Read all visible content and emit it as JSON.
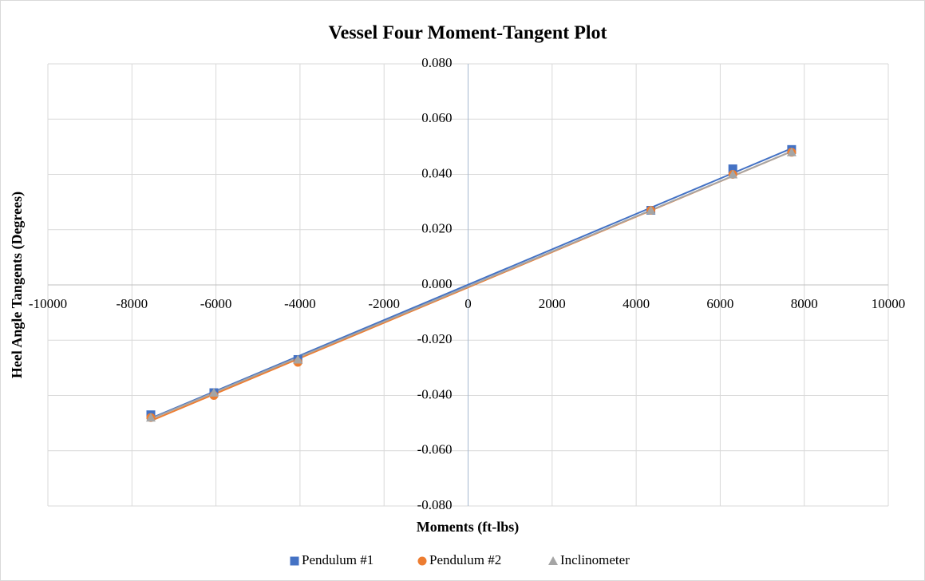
{
  "chart_data": {
    "type": "scatter",
    "title": "Vessel Four Moment-Tangent Plot",
    "x_label": "Moments (ft-lbs)",
    "y_label": "Heel Angle Tangents (Degrees)",
    "x": [
      -7550,
      -6050,
      -4050,
      4350,
      6300,
      7700
    ],
    "series": [
      {
        "name": "Pendulum #1",
        "color": "#4472c4",
        "marker": "square",
        "values": [
          -0.047,
          -0.039,
          -0.027,
          0.027,
          0.042,
          0.049
        ]
      },
      {
        "name": "Pendulum #2",
        "color": "#ed7d31",
        "marker": "circle",
        "values": [
          -0.048,
          -0.04,
          -0.028,
          0.027,
          0.04,
          0.048
        ]
      },
      {
        "name": "Inclinometer",
        "color": "#a5a5a5",
        "marker": "triangle",
        "values": [
          -0.048,
          -0.039,
          -0.027,
          0.027,
          0.04,
          0.048
        ]
      }
    ],
    "trendline": "linear",
    "xlim": [
      -10000,
      10000
    ],
    "xticks": [
      -10000,
      -8000,
      -6000,
      -4000,
      -2000,
      0,
      2000,
      4000,
      6000,
      8000,
      10000
    ],
    "ylim": [
      -0.08,
      0.08
    ],
    "yticks": [
      {
        "value": 0.08,
        "label": "0.080"
      },
      {
        "value": 0.06,
        "label": "0.060"
      },
      {
        "value": 0.04,
        "label": "0.040"
      },
      {
        "value": 0.02,
        "label": "0.020"
      },
      {
        "value": 0,
        "label": "0.000"
      },
      {
        "value": -0.02,
        "label": "-0.020"
      },
      {
        "value": -0.04,
        "label": "-0.040"
      },
      {
        "value": -0.06,
        "label": "-0.060"
      },
      {
        "value": -0.08,
        "label": "-0.080"
      }
    ],
    "grid": true,
    "legend": "bottom"
  }
}
